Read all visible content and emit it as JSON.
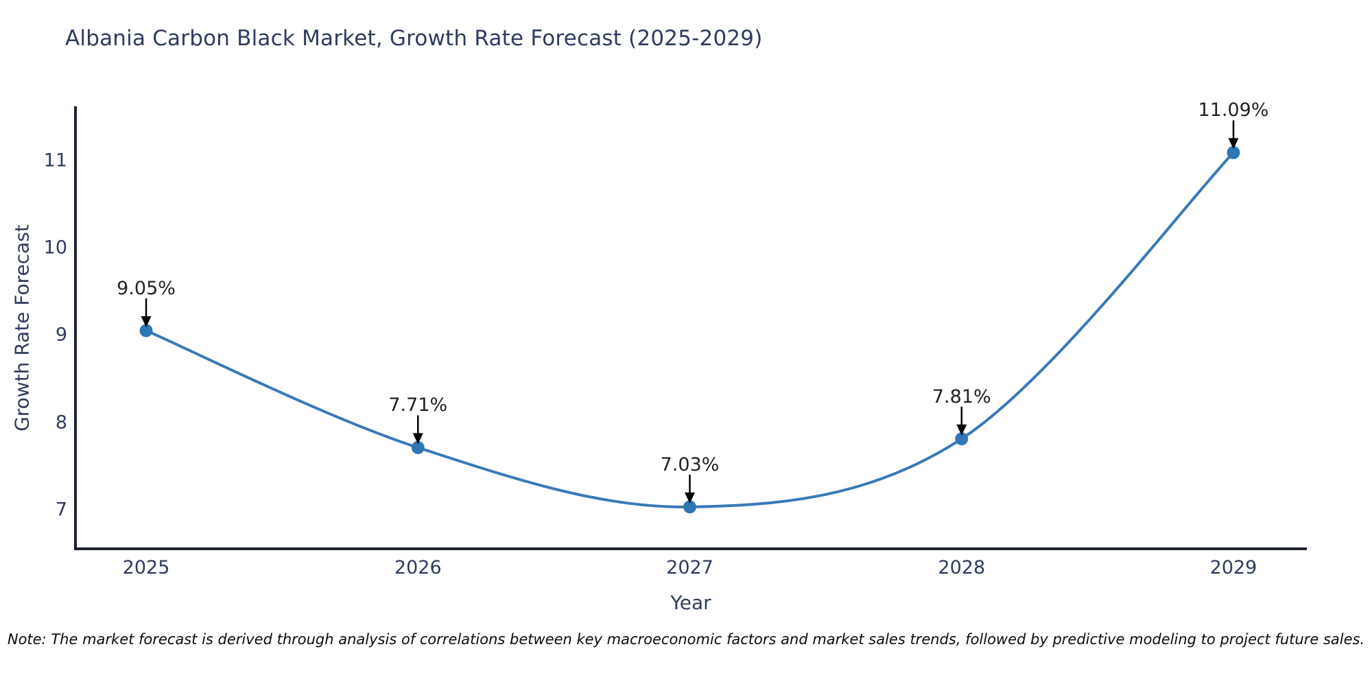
{
  "title": "Albania Carbon Black Market, Growth Rate Forecast (2025-2029)",
  "note": "Note: The market forecast is derived through analysis of correlations between key macroeconomic factors and market sales trends, followed by predictive modeling to project future sales.",
  "chart_data": {
    "type": "line",
    "title": "Albania Carbon Black Market, Growth Rate Forecast (2025-2029)",
    "x": [
      2025,
      2026,
      2027,
      2028,
      2029
    ],
    "y": [
      9.05,
      7.71,
      7.03,
      7.81,
      11.09
    ],
    "point_labels": [
      "9.05%",
      "7.71%",
      "7.03%",
      "7.81%",
      "11.09%"
    ],
    "xlabel": "Year",
    "ylabel": "Growth Rate Forecast",
    "xticks": [
      "2025",
      "2026",
      "2027",
      "2028",
      "2029"
    ],
    "xtick_values": [
      2025,
      2026,
      2027,
      2028,
      2029
    ],
    "yticks": [
      "7",
      "8",
      "9",
      "10",
      "11"
    ],
    "ytick_values": [
      7,
      8,
      9,
      10,
      11
    ],
    "xlim": [
      2024.74,
      2029.27
    ],
    "ylim": [
      6.55,
      11.62
    ],
    "line_shape": "spline",
    "grid": false,
    "legend": "none",
    "colors": {
      "line": "#3879b8",
      "marker": "#2f76b5",
      "axis": "#1c212e",
      "heading_text": "#2e3b5e",
      "annotation_text": "#222222",
      "arrow": "#000000",
      "background": "#ffffff"
    }
  }
}
